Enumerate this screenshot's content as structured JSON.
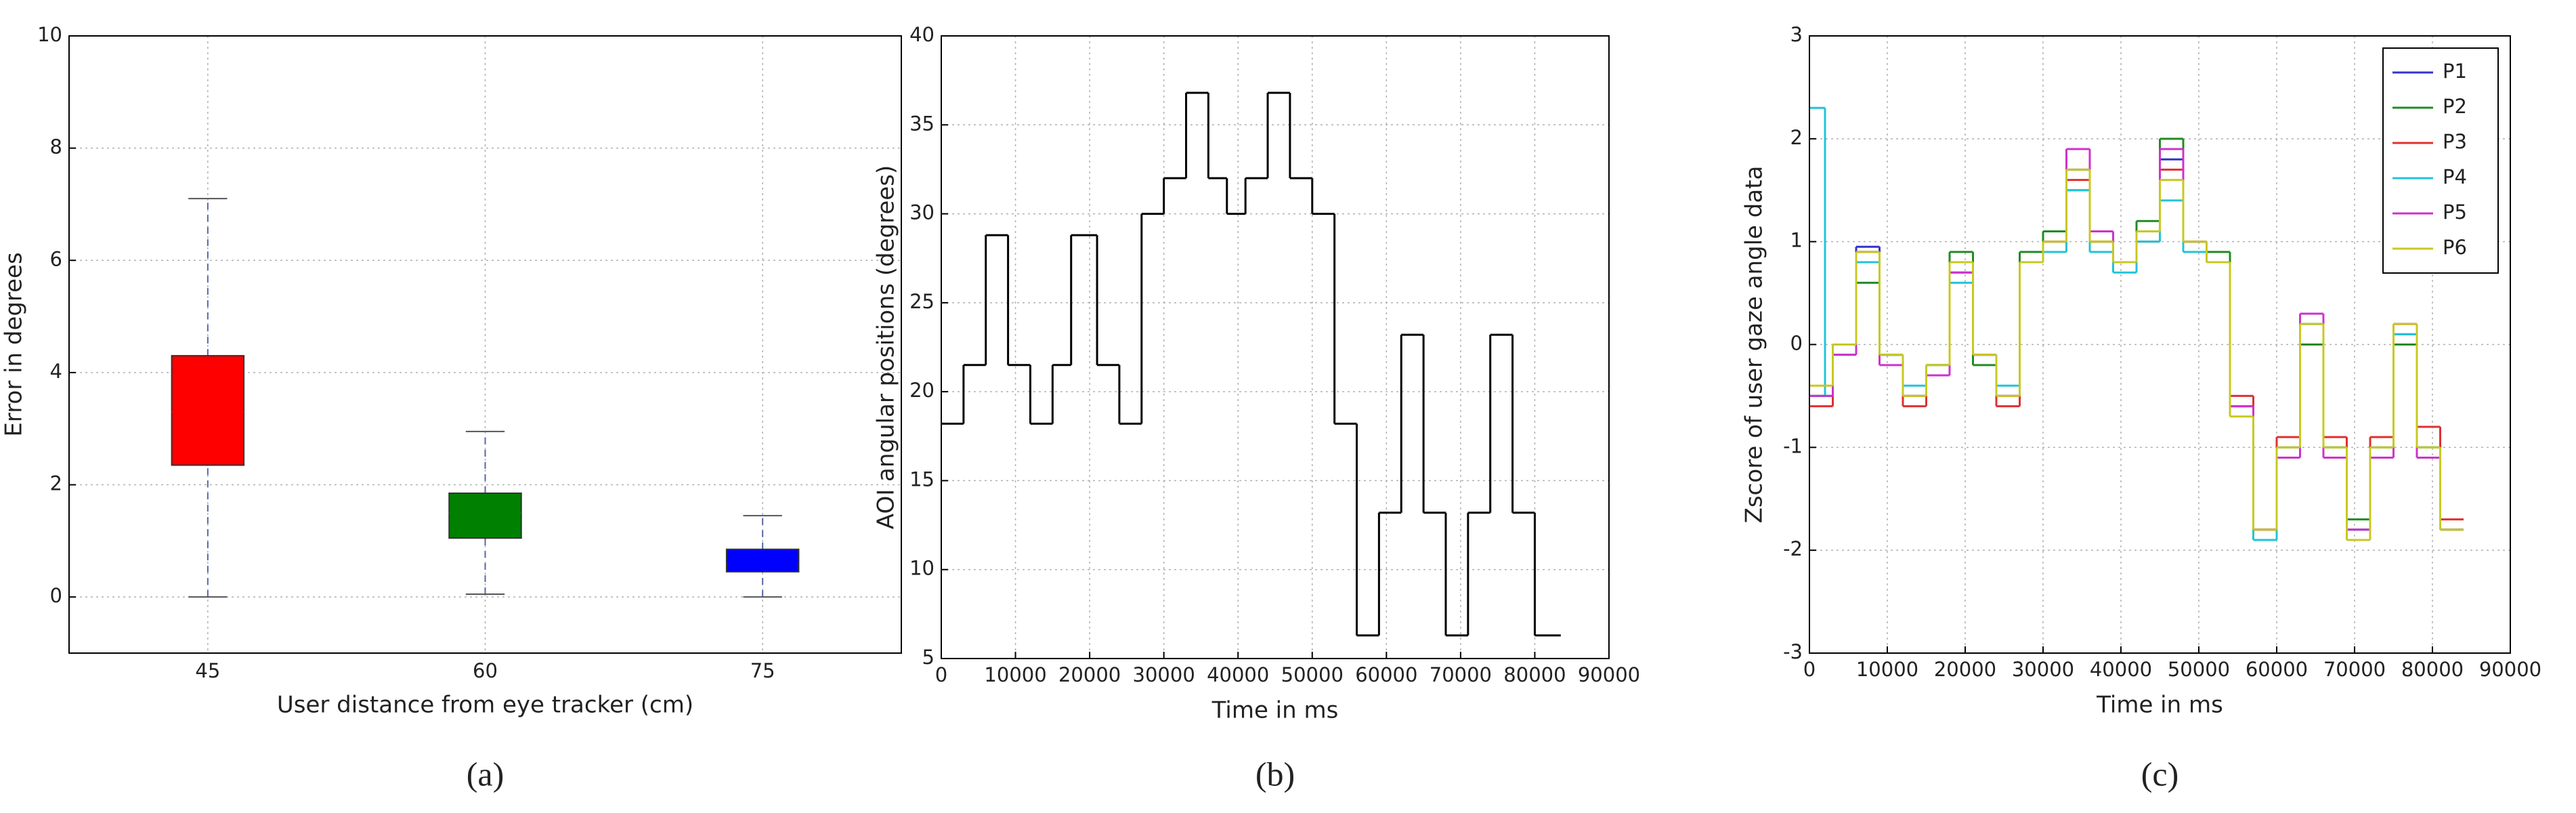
{
  "chart_data": [
    {
      "type": "box",
      "title": "(a)",
      "xlabel": "User distance from eye tracker (cm)",
      "ylabel": "Error in degrees",
      "categories": [
        "45",
        "60",
        "75"
      ],
      "boxes": [
        {
          "min": 0,
          "q1": 2.35,
          "median": 3.3,
          "q3": 4.3,
          "max": 7.1,
          "color": "#ff0000"
        },
        {
          "min": 0.05,
          "q1": 1.05,
          "median": 1.5,
          "q3": 1.85,
          "max": 2.95,
          "color": "#008000"
        },
        {
          "min": 0,
          "q1": 0.45,
          "median": 0.65,
          "q3": 0.85,
          "max": 1.45,
          "color": "#0000ff"
        }
      ],
      "ylim": [
        -1,
        10
      ],
      "yticks": [
        0,
        2,
        4,
        6,
        8,
        10
      ],
      "grid": true
    },
    {
      "type": "line",
      "drawstyle": "steps-post",
      "title": "(b)",
      "xlabel": "Time in ms",
      "ylabel": "AOI angular positions (degrees)",
      "x": [
        0,
        3000,
        6000,
        9000,
        12000,
        15000,
        17500,
        21000,
        24000,
        27000,
        30000,
        33000,
        36000,
        38500,
        41000,
        44000,
        47000,
        50000,
        53000,
        56000,
        59000,
        62000,
        65000,
        68000,
        71000,
        74000,
        77000,
        80000,
        83500
      ],
      "series": [
        {
          "color": "#000000",
          "values": [
            18.2,
            21.5,
            28.8,
            21.5,
            18.2,
            21.5,
            28.8,
            21.5,
            18.2,
            30,
            32,
            36.8,
            32,
            30,
            32,
            36.8,
            32,
            30,
            18.2,
            6.3,
            13.2,
            23.2,
            13.2,
            6.3,
            13.2,
            23.2,
            13.2,
            6.3,
            6.3
          ]
        }
      ],
      "xlim": [
        0,
        90000
      ],
      "xticks": [
        0,
        10000,
        20000,
        30000,
        40000,
        50000,
        60000,
        70000,
        80000,
        90000
      ],
      "ylim": [
        5,
        40
      ],
      "yticks": [
        5,
        10,
        15,
        20,
        25,
        30,
        35,
        40
      ],
      "grid": true
    },
    {
      "type": "line",
      "drawstyle": "steps-post",
      "title": "(c)",
      "xlabel": "Time in ms",
      "ylabel": "Zscore of user gaze angle data",
      "legend": "upper right",
      "x": [
        0,
        2000,
        3000,
        6000,
        9000,
        12000,
        15000,
        18000,
        21000,
        24000,
        27000,
        30000,
        33000,
        36000,
        39000,
        42000,
        45000,
        48000,
        51000,
        54000,
        57000,
        60000,
        63000,
        66000,
        69000,
        72000,
        75000,
        78000,
        81000,
        84000
      ],
      "series": [
        {
          "name": "P1",
          "color": "#3333cc",
          "values": [
            -0.5,
            -0.5,
            0.0,
            0.95,
            -0.1,
            -0.5,
            -0.3,
            0.7,
            -0.1,
            -0.5,
            0.8,
            1.0,
            1.7,
            1.0,
            0.8,
            1.1,
            1.8,
            1.0,
            0.8,
            -0.6,
            -1.8,
            -1.0,
            0.2,
            -1.0,
            -1.8,
            -1.0,
            0.1,
            -1.0,
            -1.8,
            -1.8
          ]
        },
        {
          "name": "P2",
          "color": "#228b22",
          "values": [
            -0.5,
            -0.5,
            -0.1,
            0.6,
            -0.1,
            -0.5,
            -0.2,
            0.9,
            -0.2,
            -0.5,
            0.9,
            1.1,
            1.5,
            1.0,
            0.8,
            1.2,
            2.0,
            1.0,
            0.9,
            -0.6,
            -1.8,
            -1.1,
            0.0,
            -1.0,
            -1.7,
            -1.1,
            0.0,
            -1.0,
            -1.8,
            -1.8
          ]
        },
        {
          "name": "P3",
          "color": "#e03030",
          "values": [
            -0.6,
            -0.6,
            0.0,
            0.9,
            -0.1,
            -0.6,
            -0.2,
            0.8,
            -0.1,
            -0.6,
            0.8,
            1.0,
            1.6,
            1.0,
            0.8,
            1.0,
            1.7,
            1.0,
            0.8,
            -0.5,
            -1.8,
            -0.9,
            0.3,
            -0.9,
            -1.8,
            -0.9,
            0.2,
            -0.8,
            -1.7,
            -1.7
          ]
        },
        {
          "name": "P4",
          "color": "#22c4d8",
          "values": [
            2.3,
            -0.5,
            0.0,
            0.8,
            -0.1,
            -0.4,
            -0.2,
            0.6,
            -0.1,
            -0.4,
            0.8,
            0.9,
            1.5,
            0.9,
            0.7,
            1.0,
            1.4,
            0.9,
            0.8,
            -0.6,
            -1.9,
            -1.0,
            0.2,
            -1.0,
            -1.8,
            -1.0,
            0.1,
            -1.0,
            -1.8,
            -1.8
          ]
        },
        {
          "name": "P5",
          "color": "#cc33cc",
          "values": [
            -0.5,
            -0.5,
            -0.1,
            0.9,
            -0.2,
            -0.5,
            -0.3,
            0.7,
            -0.1,
            -0.5,
            0.8,
            1.0,
            1.9,
            1.1,
            0.8,
            1.1,
            1.9,
            1.0,
            0.8,
            -0.6,
            -1.8,
            -1.1,
            0.3,
            -1.1,
            -1.8,
            -1.1,
            0.2,
            -1.1,
            -1.8,
            -1.8
          ]
        },
        {
          "name": "P6",
          "color": "#c8c820",
          "values": [
            -0.4,
            -0.4,
            0.0,
            0.9,
            -0.1,
            -0.5,
            -0.2,
            0.8,
            -0.1,
            -0.5,
            0.8,
            1.0,
            1.7,
            1.0,
            0.8,
            1.1,
            1.6,
            1.0,
            0.8,
            -0.7,
            -1.8,
            -1.0,
            0.2,
            -1.0,
            -1.9,
            -1.0,
            0.2,
            -1.0,
            -1.8,
            -1.8
          ]
        }
      ],
      "xlim": [
        0,
        90000
      ],
      "xticks": [
        0,
        10000,
        20000,
        30000,
        40000,
        50000,
        60000,
        70000,
        80000,
        90000
      ],
      "ylim": [
        -3,
        3
      ],
      "yticks": [
        -3,
        -2,
        -1,
        0,
        1,
        2,
        3
      ],
      "grid": true
    }
  ]
}
